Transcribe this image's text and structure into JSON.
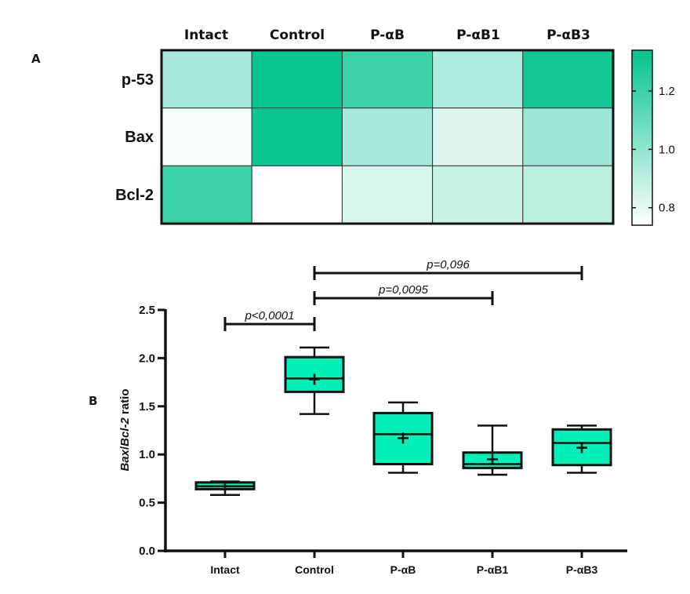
{
  "chart_data": [
    {
      "type": "heatmap",
      "panel_label": "A",
      "columns": [
        "Intact",
        "Control",
        "P-αB",
        "P-αB1",
        "P-αB3"
      ],
      "rows": [
        "p-53",
        "Bax",
        "Bcl-2"
      ],
      "values": [
        [
          0.95,
          1.32,
          1.2,
          0.93,
          1.3
        ],
        [
          0.76,
          1.32,
          0.95,
          0.82,
          0.97
        ],
        [
          1.2,
          0.74,
          0.83,
          0.87,
          0.9
        ]
      ],
      "colorbar": {
        "range": [
          0.74,
          1.34
        ],
        "ticks": [
          "0.8",
          "1.0",
          "1.2"
        ],
        "tick_values": [
          0.8,
          1.0,
          1.2
        ],
        "color_low": "#ffffff",
        "color_high": "#00c48c"
      }
    },
    {
      "type": "box",
      "panel_label": "B",
      "categories": [
        "Intact",
        "Control",
        "P-αB",
        "P-αB1",
        "P-αB3"
      ],
      "ylabel_parts": [
        "Bax",
        "/",
        "Bcl-2",
        " ratio"
      ],
      "ylim": [
        0,
        2.5
      ],
      "yticks": [
        "0.0",
        "0.5",
        "1.0",
        "1.5",
        "2.0",
        "2.5"
      ],
      "ytick_values": [
        0,
        0.5,
        1.0,
        1.5,
        2.0,
        2.5
      ],
      "box_color": "#00f0b8",
      "boxes": [
        {
          "min": 0.58,
          "q1": 0.64,
          "median": 0.67,
          "q3": 0.71,
          "max": 0.72,
          "mean": 0.67
        },
        {
          "min": 1.42,
          "q1": 1.65,
          "median": 1.79,
          "q3": 2.01,
          "max": 2.11,
          "mean": 1.78
        },
        {
          "min": 0.81,
          "q1": 0.9,
          "median": 1.21,
          "q3": 1.43,
          "max": 1.54,
          "mean": 1.17
        },
        {
          "min": 0.79,
          "q1": 0.86,
          "median": 0.9,
          "q3": 1.02,
          "max": 1.3,
          "mean": 0.95
        },
        {
          "min": 0.81,
          "q1": 0.89,
          "median": 1.12,
          "q3": 1.26,
          "max": 1.3,
          "mean": 1.07
        }
      ],
      "comparisons": [
        {
          "from": 0,
          "to": 1,
          "label": "p<0,0001",
          "level": 0
        },
        {
          "from": 1,
          "to": 3,
          "label": "p=0,0095",
          "level": 1
        },
        {
          "from": 1,
          "to": 4,
          "label": "p=0,096",
          "level": 2
        }
      ]
    }
  ]
}
